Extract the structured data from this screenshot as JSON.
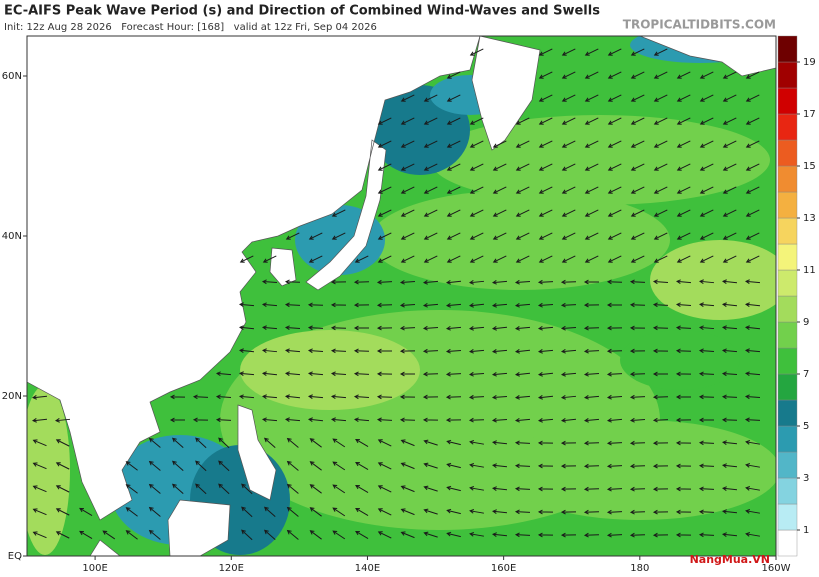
{
  "header": {
    "title": "EC-AIFS Peak Wave Period (s) and Direction of Combined Wind-Waves and Swells",
    "subtitle": "Init: 12z Aug 28 2026   Forecast Hour: [168]   valid at 12z Fri, Sep 04 2026",
    "source": "TROPICALTIDBITS.COM"
  },
  "map": {
    "xlim": [
      90,
      200
    ],
    "ylim": [
      0,
      65
    ],
    "xticks": [
      {
        "value": 100,
        "label": "100E"
      },
      {
        "value": 120,
        "label": "120E"
      },
      {
        "value": 140,
        "label": "140E"
      },
      {
        "value": 160,
        "label": "160E"
      },
      180,
      {
        "value": 200,
        "label": "160W"
      }
    ],
    "yticks": [
      {
        "value": 0,
        "label": "EQ"
      },
      {
        "value": 20,
        "label": "20N"
      },
      {
        "value": 40,
        "label": "40N"
      },
      {
        "value": 60,
        "label": "60N"
      }
    ]
  },
  "colorbar": {
    "lim": [
      0,
      20
    ],
    "ticks": [
      1,
      3,
      5,
      7,
      9,
      11,
      13,
      15,
      17,
      19
    ],
    "colors": [
      "#ffffff",
      "#b8ecf4",
      "#84d3e0",
      "#52b6c8",
      "#2c9bb0",
      "#177a8c",
      "#24a640",
      "#3fc03c",
      "#72d04c",
      "#a3dc5c",
      "#cdea6c",
      "#f4f47a",
      "#f6d45e",
      "#f4b040",
      "#f08c30",
      "#ec5c20",
      "#e82612",
      "#d00000",
      "#a00000",
      "#6e0000"
    ]
  },
  "watermark": "NangMua.VN"
}
